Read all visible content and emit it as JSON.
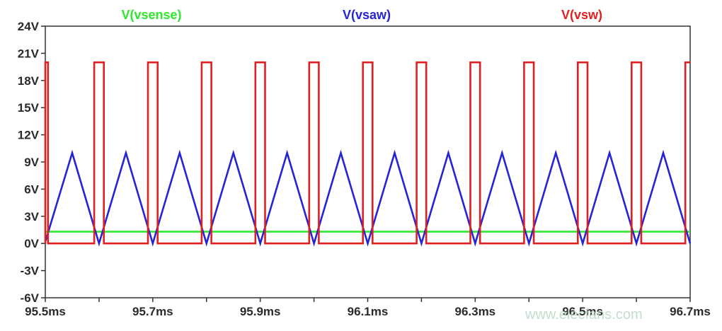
{
  "chart_data": {
    "type": "line",
    "x_unit": "ms",
    "y_unit": "V",
    "xlim": [
      95.5,
      96.7
    ],
    "ylim": [
      -6,
      24
    ],
    "x_ticks": [
      95.5,
      95.6,
      95.7,
      95.8,
      95.9,
      96.0,
      96.1,
      96.2,
      96.3,
      96.4,
      96.5,
      96.6,
      96.7
    ],
    "x_tick_labels": [
      "95.5ms",
      "",
      "95.7ms",
      "",
      "95.9ms",
      "",
      "96.1ms",
      "",
      "96.3ms",
      "",
      "96.5ms",
      "",
      "96.7ms"
    ],
    "y_ticks": [
      24,
      21,
      18,
      15,
      12,
      9,
      6,
      3,
      0,
      -3,
      -6
    ],
    "y_tick_labels": [
      "24V",
      "21V",
      "18V",
      "15V",
      "12V",
      "9V",
      "6V",
      "3V",
      "0V",
      "-3V",
      "-6V"
    ],
    "grid": false,
    "legend_placement": "top",
    "series": [
      {
        "name": "V(vsense)",
        "color": "#2ee82e",
        "x": [
          95.5,
          96.7
        ],
        "y": [
          1.3,
          1.3
        ]
      },
      {
        "name": "V(vsaw)",
        "color": "#2424d6",
        "x": [
          95.5,
          95.5,
          95.55,
          95.6,
          95.65,
          95.7,
          95.75,
          95.8,
          95.85,
          95.9,
          95.95,
          96.0,
          96.05,
          96.1,
          96.15,
          96.2,
          96.25,
          96.3,
          96.35,
          96.4,
          96.45,
          96.5,
          96.55,
          96.6,
          96.65,
          96.7
        ],
        "y": [
          0.2,
          0.2,
          10,
          0,
          10,
          0,
          10,
          0,
          10,
          0,
          10,
          0,
          10,
          0,
          10,
          0,
          10,
          0,
          10,
          0,
          10,
          0,
          10,
          0,
          10,
          0
        ]
      },
      {
        "name": "V(vsw)",
        "color": "#e02020",
        "x": [
          95.5,
          95.5,
          95.505,
          95.505,
          95.591,
          95.591,
          95.609,
          95.609,
          95.691,
          95.691,
          95.709,
          95.709,
          95.791,
          95.791,
          95.809,
          95.809,
          95.891,
          95.891,
          95.909,
          95.909,
          95.991,
          95.991,
          96.009,
          96.009,
          96.091,
          96.091,
          96.109,
          96.109,
          96.191,
          96.191,
          96.209,
          96.209,
          96.291,
          96.291,
          96.309,
          96.309,
          96.391,
          96.391,
          96.409,
          96.409,
          96.491,
          96.491,
          96.509,
          96.509,
          96.591,
          96.591,
          96.609,
          96.609,
          96.691,
          96.691,
          96.7
        ],
        "y": [
          0,
          20,
          20,
          0,
          0,
          20,
          20,
          0,
          0,
          20,
          20,
          0,
          0,
          20,
          20,
          0,
          0,
          20,
          20,
          0,
          0,
          20,
          20,
          0,
          0,
          20,
          20,
          0,
          0,
          20,
          20,
          0,
          0,
          20,
          20,
          0,
          0,
          20,
          20,
          0,
          0,
          20,
          20,
          0,
          0,
          20,
          20,
          0,
          0,
          20,
          20
        ]
      }
    ]
  },
  "watermark": "www.elecfans.com"
}
